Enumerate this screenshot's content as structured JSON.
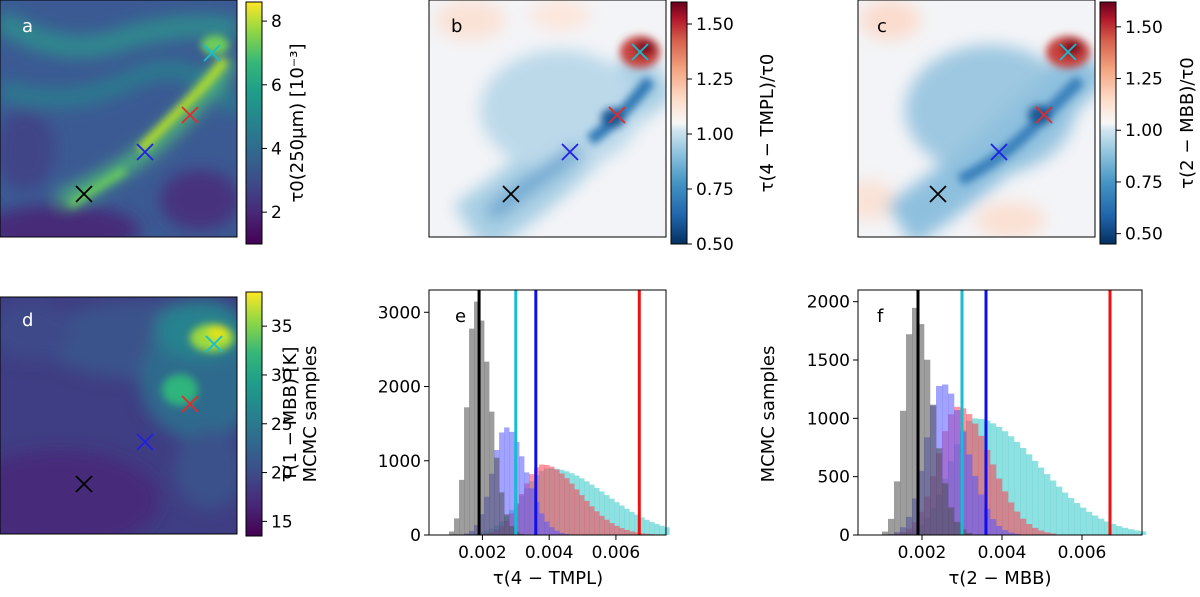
{
  "chart_data": [
    {
      "panel": "a",
      "type": "heatmap",
      "colormap": "viridis",
      "colorbar": {
        "label": "τ0(250μm) [10⁻³]",
        "range": [
          1,
          8.6
        ],
        "ticks": [
          "2",
          "4",
          "6",
          "8"
        ]
      },
      "markers": [
        {
          "name": "cyan",
          "color": "#17becf"
        },
        {
          "name": "red",
          "color": "#e32b2b"
        },
        {
          "name": "blue",
          "color": "#1f1fe6"
        },
        {
          "name": "black",
          "color": "#000000"
        }
      ]
    },
    {
      "panel": "b",
      "type": "heatmap",
      "colormap": "RdBu_r",
      "colorbar": {
        "label": "τ(4 − TMPL)/τ0",
        "range": [
          0.5,
          1.6
        ],
        "ticks": [
          "0.50",
          "0.75",
          "1.00",
          "1.25",
          "1.50"
        ]
      }
    },
    {
      "panel": "c",
      "type": "heatmap",
      "colormap": "RdBu_r",
      "colorbar": {
        "label": "τ(2 − MBB)/τ0",
        "range": [
          0.45,
          1.62
        ],
        "ticks": [
          "0.50",
          "0.75",
          "1.00",
          "1.25",
          "1.50"
        ]
      }
    },
    {
      "panel": "d",
      "type": "heatmap",
      "colormap": "viridis",
      "colorbar": {
        "label": "T(1 − MBB) [K]",
        "range": [
          13.5,
          38.5
        ],
        "ticks": [
          "15",
          "20",
          "25",
          "30",
          "35"
        ]
      }
    },
    {
      "panel": "e",
      "type": "histogram",
      "xlabel": "τ(4 − TMPL)",
      "ylabel": "MCMC samples",
      "xlim": [
        0.0004,
        0.0075
      ],
      "ylim": [
        0,
        3300
      ],
      "xticks": [
        "0.002",
        "0.004",
        "0.006"
      ],
      "yticks": [
        "0",
        "1000",
        "2000",
        "3000"
      ],
      "bin_width": 0.00015,
      "vlines": [
        {
          "color": "black",
          "x": 0.0019
        },
        {
          "color": "cyan",
          "x": 0.003
        },
        {
          "color": "blue",
          "x": 0.0036
        },
        {
          "color": "red",
          "x": 0.0067
        }
      ],
      "series": [
        {
          "name": "black",
          "color": "#4d4d4d",
          "peak": 3150,
          "mode": 0.0018,
          "left_sigma": 0.00025,
          "right_sigma": 0.00042,
          "start": 0.0007
        },
        {
          "name": "blue",
          "color": "#5555ff",
          "peak": 1450,
          "mode": 0.0027,
          "left_sigma": 0.0004,
          "right_sigma": 0.0006,
          "start": 0.0011
        },
        {
          "name": "red",
          "color": "#ff4050",
          "peak": 950,
          "mode": 0.0038,
          "left_sigma": 0.0006,
          "right_sigma": 0.0011,
          "start": 0.0016
        },
        {
          "name": "cyan",
          "color": "#33c9c9",
          "peak": 900,
          "mode": 0.004,
          "left_sigma": 0.0008,
          "right_sigma": 0.0017,
          "start": 0.0015
        }
      ]
    },
    {
      "panel": "f",
      "type": "histogram",
      "xlabel": "τ(2 − MBB)",
      "ylabel": "MCMC samples",
      "xlim": [
        0.0004,
        0.0075
      ],
      "ylim": [
        0,
        2100
      ],
      "xticks": [
        "0.002",
        "0.004",
        "0.006"
      ],
      "yticks": [
        "0",
        "500",
        "1000",
        "1500",
        "2000"
      ],
      "bin_width": 0.00015,
      "vlines": [
        {
          "color": "black",
          "x": 0.0019
        },
        {
          "color": "cyan",
          "x": 0.003
        },
        {
          "color": "blue",
          "x": 0.0036
        },
        {
          "color": "red",
          "x": 0.0067
        }
      ],
      "series": [
        {
          "name": "black",
          "color": "#4d4d4d",
          "peak": 1950,
          "mode": 0.0018,
          "left_sigma": 0.00025,
          "right_sigma": 0.00045,
          "start": 0.0007
        },
        {
          "name": "blue",
          "color": "#5555ff",
          "peak": 1300,
          "mode": 0.0025,
          "left_sigma": 0.0004,
          "right_sigma": 0.0006,
          "start": 0.0009
        },
        {
          "name": "red",
          "color": "#ff4050",
          "peak": 1100,
          "mode": 0.0029,
          "left_sigma": 0.0005,
          "right_sigma": 0.0008,
          "start": 0.0012
        },
        {
          "name": "cyan",
          "color": "#33c9c9",
          "peak": 1000,
          "mode": 0.0033,
          "left_sigma": 0.0006,
          "right_sigma": 0.0016,
          "start": 0.0012
        }
      ]
    }
  ],
  "panel_letters": {
    "a": "a",
    "b": "b",
    "c": "c",
    "d": "d",
    "e": "e",
    "f": "f"
  }
}
